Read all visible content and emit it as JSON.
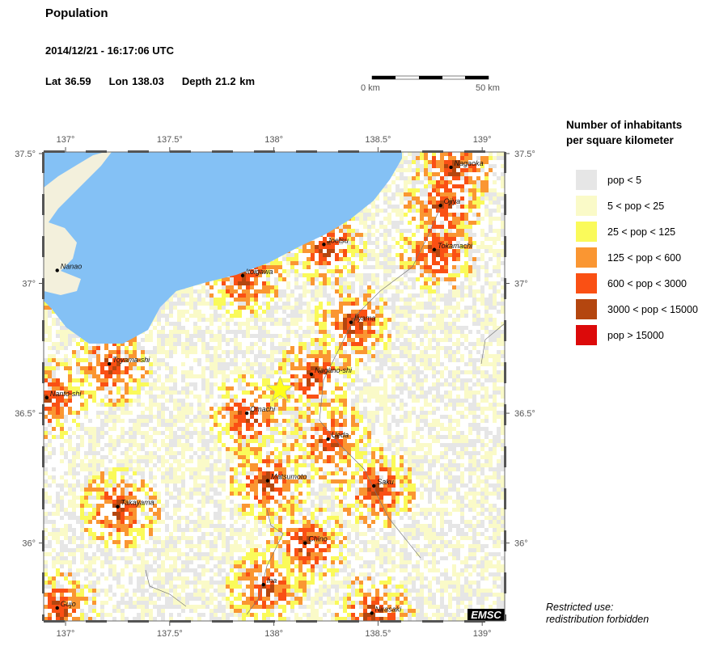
{
  "header": {
    "title": "Population",
    "datetime": "2014/12/21 - 16:17:06 UTC",
    "lat": "Lat 36.59",
    "lon": "Lon 138.03",
    "depth": "Depth  21.2 km"
  },
  "scale_bar": {
    "start": "0 km",
    "end": "50 km"
  },
  "map": {
    "extent": {
      "lon": [
        136.895,
        139.108
      ],
      "lat": [
        35.7,
        37.506
      ]
    },
    "lon_ticks": [
      "137°",
      "137.5°",
      "138°",
      "138.5°",
      "139°"
    ],
    "lat_ticks": [
      "37.5°",
      "37°",
      "36.5°",
      "36°"
    ],
    "colors": {
      "sea": "#84c1f5",
      "land": "#ffffff"
    },
    "epicenter": {
      "lon": 138.03,
      "lat": 36.59,
      "color": "#ffff1a",
      "icon": "star-icon"
    },
    "cities": [
      {
        "name": "Nagaoka",
        "lon": 138.85,
        "lat": 37.447
      },
      {
        "name": "Ojiya",
        "lon": 138.8,
        "lat": 37.3
      },
      {
        "name": "Tokamachi",
        "lon": 138.77,
        "lat": 37.13
      },
      {
        "name": "Joetsu",
        "lon": 138.24,
        "lat": 37.15
      },
      {
        "name": "Itoigawa",
        "lon": 137.85,
        "lat": 37.03
      },
      {
        "name": "Nanao",
        "lon": 136.96,
        "lat": 37.05
      },
      {
        "name": "Iiyama",
        "lon": 138.37,
        "lat": 36.85
      },
      {
        "name": "Toyama-shi",
        "lon": 137.21,
        "lat": 36.69
      },
      {
        "name": "Nagano-shi",
        "lon": 138.18,
        "lat": 36.65
      },
      {
        "name": "Nanto-shi",
        "lon": 136.91,
        "lat": 36.56
      },
      {
        "name": "Omachi",
        "lon": 137.87,
        "lat": 36.5
      },
      {
        "name": "Ueda",
        "lon": 138.26,
        "lat": 36.4
      },
      {
        "name": "Matsumoto",
        "lon": 137.97,
        "lat": 36.24
      },
      {
        "name": "Saku",
        "lon": 138.48,
        "lat": 36.22
      },
      {
        "name": "Takayama",
        "lon": 137.25,
        "lat": 36.14
      },
      {
        "name": "Chino",
        "lon": 138.15,
        "lat": 36.0
      },
      {
        "name": "Ina",
        "lon": 137.95,
        "lat": 35.84
      },
      {
        "name": "Gujo",
        "lon": 136.96,
        "lat": 35.75
      },
      {
        "name": "Nirasaki",
        "lon": 138.47,
        "lat": 35.73
      }
    ],
    "logo": "EMSC"
  },
  "legend": {
    "title_line1": "Number of inhabitants",
    "title_line2": "per square kilometer",
    "items": [
      {
        "label": "pop < 5",
        "color": "#e6e6e6"
      },
      {
        "label": "5 < pop < 25",
        "color": "#fafac8"
      },
      {
        "label": "25 < pop < 125",
        "color": "#fafa5a"
      },
      {
        "label": "125 < pop < 600",
        "color": "#fa9632"
      },
      {
        "label": "600 < pop < 3000",
        "color": "#fa5014"
      },
      {
        "label": "3000 < pop < 15000",
        "color": "#b4460f"
      },
      {
        "label": "pop > 15000",
        "color": "#dc0a0a"
      }
    ]
  },
  "note": {
    "line1": "Restricted use:",
    "line2": "redistribution forbidden"
  }
}
